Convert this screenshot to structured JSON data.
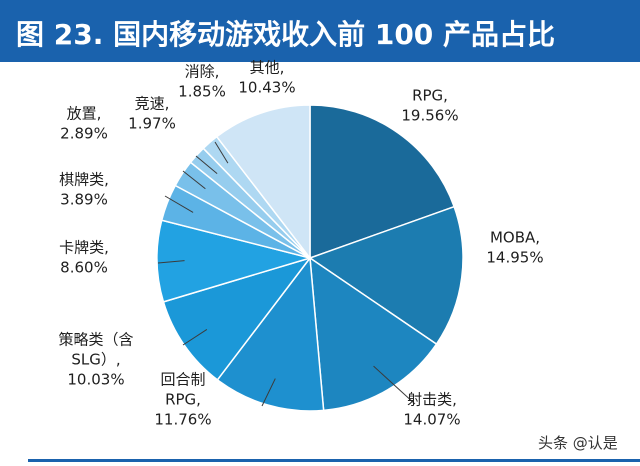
{
  "header": {
    "title": "图 23. 国内移动游戏收入前 100 产品占比"
  },
  "watermark": "头条 @认是",
  "colors": {
    "title_bar": "#1a62ad",
    "leader": "#3b3b3b"
  },
  "chart_data": {
    "type": "pie",
    "title": "图 23. 国内移动游戏收入前 100 产品占比",
    "start": "12 o'clock",
    "direction": "clockwise",
    "slices": [
      {
        "label": "RPG",
        "value": 19.56,
        "value_text": "19.56%",
        "label_lines": [
          "RPG,",
          "19.56%"
        ],
        "color": "#1a6a9a"
      },
      {
        "label": "MOBA",
        "value": 14.95,
        "value_text": "14.95%",
        "label_lines": [
          "MOBA,",
          "14.95%"
        ],
        "color": "#1c7cb0"
      },
      {
        "label": "射击类",
        "value": 14.07,
        "value_text": "14.07%",
        "label_lines": [
          "射击类,",
          "14.07%"
        ],
        "color": "#1d86c0"
      },
      {
        "label": "回合制RPG",
        "value": 11.76,
        "value_text": "11.76%",
        "label_lines": [
          "回合制",
          "RPG,",
          "11.76%"
        ],
        "color": "#1e90cf"
      },
      {
        "label": "策略类（含SLG）",
        "value": 10.03,
        "value_text": "10.03%",
        "label_lines": [
          "策略类（含",
          "SLG）,",
          "10.03%"
        ],
        "color": "#1b98d8"
      },
      {
        "label": "卡牌类",
        "value": 8.6,
        "value_text": "8.60%",
        "label_lines": [
          "卡牌类,",
          "8.60%"
        ],
        "color": "#22a2e2"
      },
      {
        "label": "棋牌类",
        "value": 3.89,
        "value_text": "3.89%",
        "label_lines": [
          "棋牌类,",
          "3.89%"
        ],
        "color": "#5cb3e6"
      },
      {
        "label": "放置",
        "value": 2.89,
        "value_text": "2.89%",
        "label_lines": [
          "放置,",
          "2.89%"
        ],
        "color": "#79c0ea"
      },
      {
        "label": "竞速",
        "value": 1.97,
        "value_text": "1.97%",
        "label_lines": [
          "竞速,",
          "1.97%"
        ],
        "color": "#96cdee"
      },
      {
        "label": "消除",
        "value": 1.85,
        "value_text": "1.85%",
        "label_lines": [
          "消除,",
          "1.85%"
        ],
        "color": "#aed8f2"
      },
      {
        "label": "其他",
        "value": 10.43,
        "value_text": "10.43%",
        "label_lines": [
          "其他,",
          "10.43%"
        ],
        "color": "#cfe5f6"
      }
    ]
  }
}
